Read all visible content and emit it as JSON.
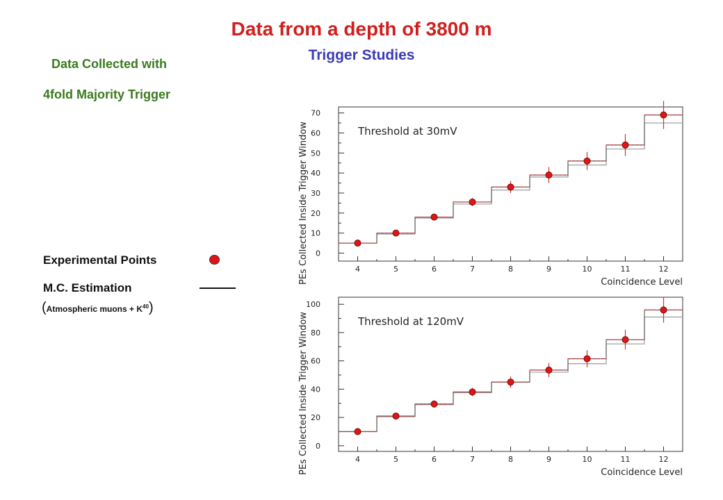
{
  "header": {
    "title": "Data from a depth of 3800 m",
    "subtitle": "Trigger Studies"
  },
  "info": {
    "line1": "Data Collected with",
    "line2": "4fold Majority Trigger"
  },
  "legend": {
    "points_label": "Experimental Points",
    "mc_label": "M.C. Estimation",
    "mc_note_open": "(",
    "mc_note_text": "Atmospheric muons + K",
    "mc_note_sup": "40",
    "mc_note_close": ")"
  },
  "colors": {
    "title": "#d11f1f",
    "subtitle": "#3b3bb5",
    "info": "#3a7a1e",
    "point": "#e41414",
    "mc_line": "#999999",
    "data_band": "#cc3333"
  },
  "chart_data": [
    {
      "type": "scatter",
      "panel_label": "Threshold at 30mV",
      "xlabel": "Coincidence Level",
      "ylabel": "PEs Collected Inside Trigger Window",
      "xlim": [
        3.5,
        12.5
      ],
      "ylim": [
        -4,
        73
      ],
      "x_ticks": [
        4,
        5,
        6,
        7,
        8,
        9,
        10,
        11,
        12
      ],
      "y_ticks": [
        0,
        10,
        20,
        30,
        40,
        50,
        60,
        70
      ],
      "series": [
        {
          "name": "Experimental Points",
          "x": [
            4,
            5,
            6,
            7,
            8,
            9,
            10,
            11,
            12
          ],
          "values": [
            5,
            10,
            18,
            25.5,
            33,
            39,
            46,
            54,
            69
          ],
          "errors": [
            1.0,
            1.0,
            1.2,
            2.0,
            3.0,
            4.0,
            4.5,
            5.5,
            7.0
          ]
        },
        {
          "name": "M.C. Estimation",
          "x": [
            4,
            5,
            6,
            7,
            8,
            9,
            10,
            11,
            12
          ],
          "values": [
            5,
            9.5,
            17.5,
            24.5,
            31.5,
            38,
            44,
            52,
            65
          ]
        }
      ]
    },
    {
      "type": "scatter",
      "panel_label": "Threshold at 120mV",
      "xlabel": "Coincidence Level",
      "ylabel": "PEs Collected Inside Trigger Window",
      "xlim": [
        3.5,
        12.5
      ],
      "ylim": [
        -4,
        105
      ],
      "x_ticks": [
        4,
        5,
        6,
        7,
        8,
        9,
        10,
        11,
        12
      ],
      "y_ticks": [
        0,
        20,
        40,
        60,
        80,
        100
      ],
      "series": [
        {
          "name": "Experimental Points",
          "x": [
            4,
            5,
            6,
            7,
            8,
            9,
            10,
            11,
            12
          ],
          "values": [
            10,
            21,
            29.5,
            38,
            45,
            53.5,
            61.5,
            75,
            96
          ],
          "errors": [
            1.0,
            1.5,
            2.5,
            3.0,
            4.0,
            5.0,
            6.0,
            7.0,
            9.0
          ]
        },
        {
          "name": "M.C. Estimation",
          "x": [
            4,
            5,
            6,
            7,
            8,
            9,
            10,
            11,
            12
          ],
          "values": [
            10,
            20.5,
            29,
            37.5,
            45,
            52,
            58,
            72,
            91
          ]
        }
      ]
    }
  ]
}
